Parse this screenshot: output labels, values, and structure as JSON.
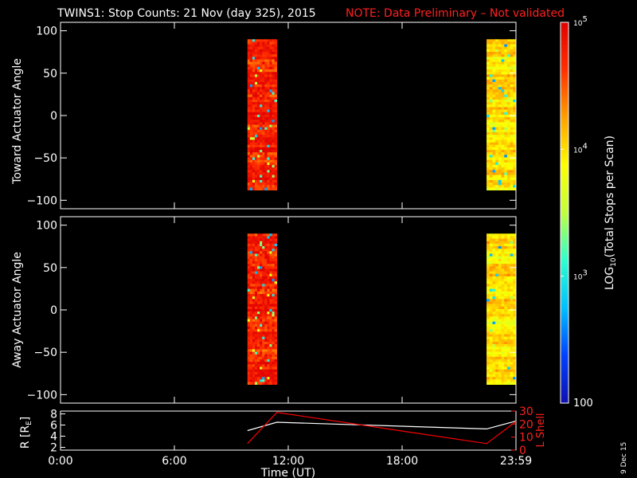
{
  "title": "TWINS1: Stop Counts: 21 Nov (day 325), 2015",
  "note": "NOTE: Data Preliminary – Not validated",
  "stamp": "9 Dec 15",
  "colors": {
    "background": "#000000",
    "foreground": "#ffffff",
    "note": "#ff0000",
    "l_shell": "#ff0000",
    "r_line": "#ffffff"
  },
  "chart_data": [
    {
      "type": "heatmap",
      "panel": "toward",
      "ylabel": "Toward Actuator Angle",
      "ylim": [
        -110,
        110
      ],
      "yticks": [
        100,
        50,
        0,
        -50,
        -100
      ],
      "ytick_labels": [
        "100",
        "50",
        "0",
        "−50",
        "−100"
      ],
      "xlim": [
        0,
        24
      ],
      "blocks": [
        {
          "t_start": 9.85,
          "t_end": 11.4,
          "angle_min": -88,
          "angle_max": 90,
          "log_counts_typical": 4.7
        },
        {
          "t_start": 22.45,
          "t_end": 24.1,
          "angle_min": -88,
          "angle_max": 90,
          "log_counts_typical": 4.0
        }
      ]
    },
    {
      "type": "heatmap",
      "panel": "away",
      "ylabel": "Away Actuator Angle",
      "ylim": [
        -110,
        110
      ],
      "yticks": [
        100,
        50,
        0,
        -50,
        -100
      ],
      "ytick_labels": [
        "100",
        "50",
        "0",
        "−50",
        "−100"
      ],
      "xlim": [
        0,
        24
      ],
      "blocks": [
        {
          "t_start": 9.85,
          "t_end": 11.4,
          "angle_min": -88,
          "angle_max": 90,
          "log_counts_typical": 4.7
        },
        {
          "t_start": 22.45,
          "t_end": 24.1,
          "angle_min": -88,
          "angle_max": 90,
          "log_counts_typical": 4.0
        }
      ]
    },
    {
      "type": "line",
      "panel": "ephemeris",
      "ylabel": "R [Rₑ]",
      "ylabel_main": "R [R",
      "ylabel_sub": "E",
      "ylabel_end": "]",
      "y2label": "L Shell",
      "ylim": [
        1.5,
        8.5
      ],
      "yticks": [
        2,
        4,
        6,
        8
      ],
      "ytick_labels": [
        "2",
        "4",
        "6",
        "8"
      ],
      "y2lim": [
        0,
        30
      ],
      "y2ticks": [
        0,
        10,
        20,
        30
      ],
      "y2tick_labels": [
        "0",
        "10",
        "20",
        "30"
      ],
      "xlabel": "Time (UT)",
      "xlim": [
        0,
        24
      ],
      "xticks": [
        0,
        6,
        12,
        18,
        24
      ],
      "xtick_labels": [
        "0:00",
        "6:00",
        "12:00",
        "18:00",
        "23:59"
      ],
      "series": [
        {
          "axis": "left",
          "color": "#ffffff",
          "x": [
            9.85,
            11.4,
            22.45,
            24.1
          ],
          "y": [
            5.0,
            6.5,
            5.3,
            6.7
          ]
        },
        {
          "axis": "right",
          "color": "#ff0000",
          "x": [
            9.85,
            11.4,
            22.45,
            24.1
          ],
          "y": [
            5,
            29,
            5,
            22
          ]
        }
      ]
    }
  ],
  "colorbar": {
    "label_prefix": "LOG",
    "label_sub": "10",
    "label_suffix": "(Total Stops per Scan)",
    "min": 2,
    "max": 5,
    "tick_values": [
      5,
      4,
      3
    ],
    "tick_labels": [
      "10",
      "10",
      "10"
    ],
    "tick_sups": [
      "5",
      "4",
      "3"
    ],
    "bottom_label": "100",
    "colormap": [
      "#1010b0",
      "#0040ff",
      "#00c0ff",
      "#30ffd0",
      "#c0ff40",
      "#ffff00",
      "#ffa000",
      "#ff3000",
      "#e00000"
    ]
  }
}
